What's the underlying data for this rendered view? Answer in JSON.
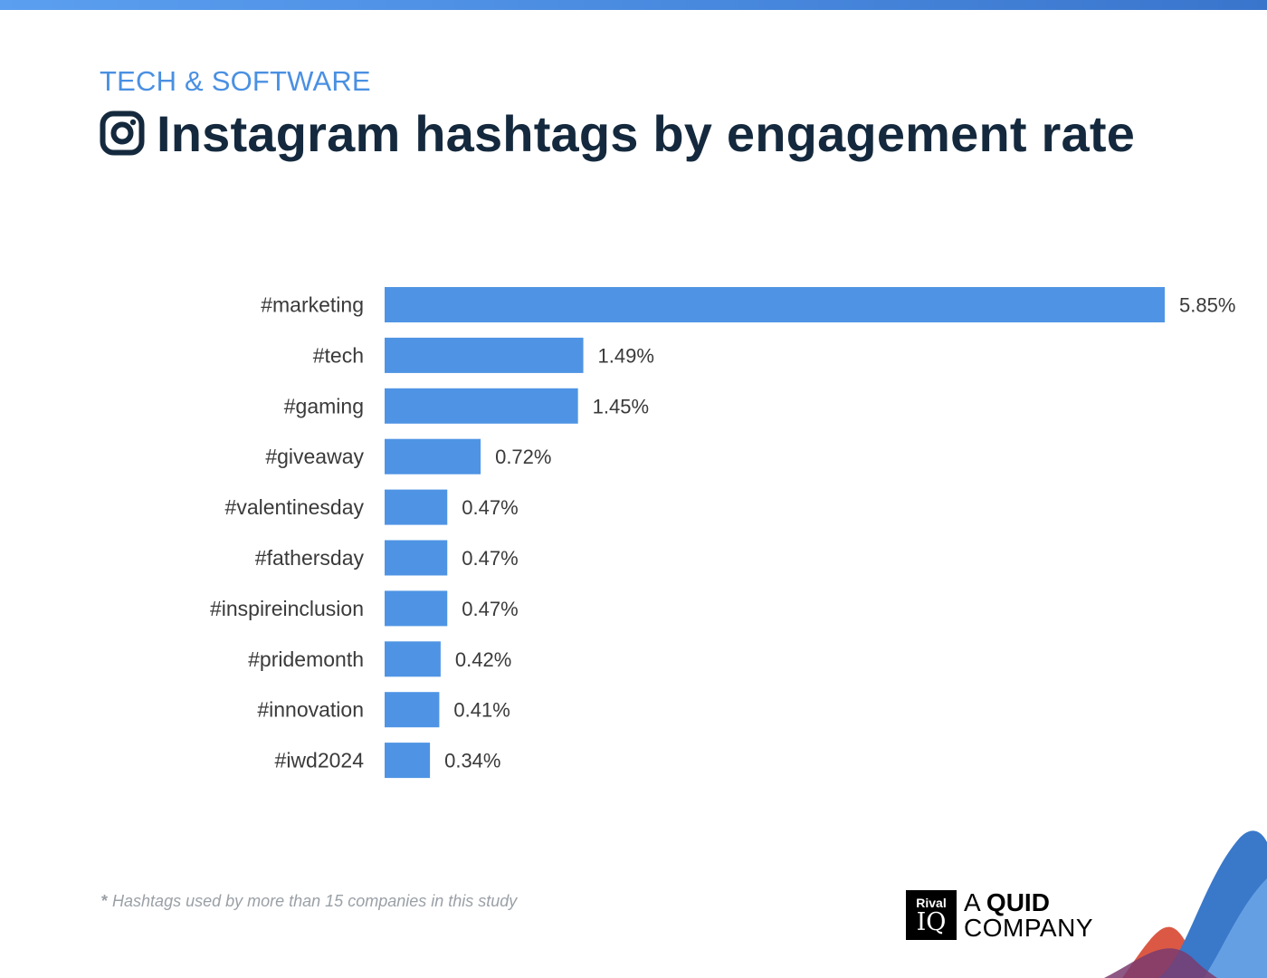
{
  "header": {
    "category": "TECH & SOFTWARE",
    "title": "Instagram hashtags by engagement rate",
    "icon": "instagram-icon"
  },
  "chart_data": {
    "type": "bar",
    "orientation": "horizontal",
    "categories": [
      "#marketing",
      "#tech",
      "#gaming",
      "#giveaway",
      "#valentinesday",
      "#fathersday",
      "#inspireinclusion",
      "#pridemonth",
      "#innovation",
      "#iwd2024"
    ],
    "values": [
      5.85,
      1.49,
      1.45,
      0.72,
      0.47,
      0.47,
      0.47,
      0.42,
      0.41,
      0.34
    ],
    "labels": [
      "5.85%",
      "1.49%",
      "1.45%",
      "0.72%",
      "0.47%",
      "0.47%",
      "0.47%",
      "0.42%",
      "0.41%",
      "0.34%"
    ],
    "unit": "%",
    "bar_color": "#4f94e4",
    "xlim": [
      0,
      5.85
    ],
    "grid": false
  },
  "footnote": {
    "star": "*",
    "text": "Hashtags used by more than 15 companies in this study"
  },
  "branding": {
    "box_top": "Rival",
    "box_bottom": "IQ",
    "line1_prefix": "A ",
    "line1_bold": "QUID",
    "line2": "COMPANY"
  },
  "colors": {
    "accent": "#4a90e2",
    "title": "#14293d",
    "wave_blue": "#3a78c9",
    "wave_light": "#6aa3e6",
    "wave_red": "#d9503a",
    "wave_purple": "#7a3b6e"
  }
}
